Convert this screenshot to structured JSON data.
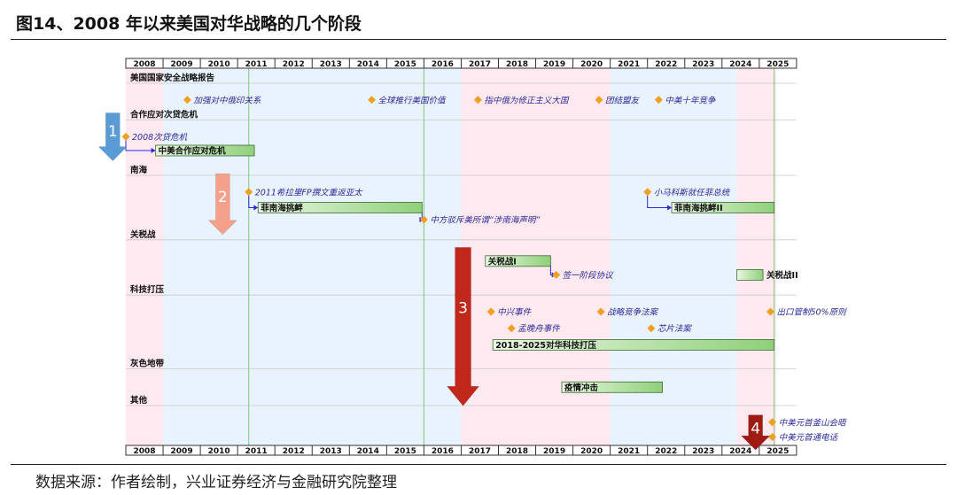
{
  "title": "图14、2008 年以来美国对华战略的几个阶段",
  "source": "数据来源：作者绘制，兴业证券经济与金融研究院整理",
  "colors": {
    "pink": "#fde9ef",
    "blue": "#e8f3fd",
    "bar_start": "#e9f7e2",
    "bar_end": "#8fd07a",
    "diamond": "#f0a020",
    "connector": "#2a2ae0",
    "event_text": "#2a2a9a",
    "arrow_blue": "#5b9bd5",
    "arrow_salmon": "#f4a08a",
    "arrow_red": "#c0281c",
    "arrow_darkred": "#9e1a12",
    "gridline": "#7dc77d"
  },
  "chart_data": {
    "type": "gantt",
    "years": [
      "2008",
      "2009",
      "2010",
      "2011",
      "2012",
      "2013",
      "2014",
      "2015",
      "2016",
      "2017",
      "2018",
      "2019",
      "2020",
      "2021",
      "2022",
      "2023",
      "2024",
      "2025"
    ],
    "periods": [
      {
        "from": 2008.0,
        "to": 2009.0,
        "shade": "pink"
      },
      {
        "from": 2009.0,
        "to": 2017.0,
        "shade": "blue"
      },
      {
        "from": 2017.0,
        "to": 2021.0,
        "shade": "pink"
      },
      {
        "from": 2021.0,
        "to": 2024.4,
        "shade": "blue"
      },
      {
        "from": 2024.4,
        "to": 2025.45,
        "shade": "pink"
      }
    ],
    "vlines": [
      2011.3,
      2016.0,
      2025.4
    ],
    "categories": [
      {
        "label": "美国国家安全战略报告",
        "row": 0.0
      },
      {
        "label": "合作应对次贷危机",
        "row": 2.0
      },
      {
        "label": "南海",
        "row": 5.0
      },
      {
        "label": "关税战",
        "row": 8.5
      },
      {
        "label": "科技打压",
        "row": 11.5
      },
      {
        "label": "灰色地带",
        "row": 15.5
      },
      {
        "label": "其他",
        "row": 17.5
      }
    ],
    "events": [
      {
        "label": "加强对中俄印关系",
        "date": 2009.65,
        "row": 1.0
      },
      {
        "label": "全球推行美国价值",
        "date": 2014.6,
        "row": 1.0
      },
      {
        "label": "指中俄为修正主义大国",
        "date": 2017.45,
        "row": 1.0
      },
      {
        "label": "团结盟友",
        "date": 2020.7,
        "row": 1.0
      },
      {
        "label": "中美十年竞争",
        "date": 2022.3,
        "row": 1.0
      },
      {
        "label": "2008次贷危机",
        "date": 2008.0,
        "row": 3.0
      },
      {
        "label": "2011希拉里FP撰文重返亚太",
        "date": 2011.3,
        "row": 6.0
      },
      {
        "label": "小马科斯就任菲总统",
        "date": 2022.0,
        "row": 6.0
      },
      {
        "label": "中方驳斥美所谓“涉南海声明”",
        "date": 2016.0,
        "row": 7.5
      },
      {
        "label": "签一阶段协议",
        "date": 2019.55,
        "row": 10.5
      },
      {
        "label": "中兴事件",
        "date": 2017.8,
        "row": 12.5
      },
      {
        "label": "战略竞争法案",
        "date": 2020.75,
        "row": 12.5
      },
      {
        "label": "出口管制50%原则",
        "date": 2025.3,
        "row": 12.5
      },
      {
        "label": "孟晚舟事件",
        "date": 2018.35,
        "row": 13.4
      },
      {
        "label": "芯片法案",
        "date": 2022.1,
        "row": 13.4
      },
      {
        "label": "中美元首釜山会晤",
        "date": 2025.35,
        "row": 18.5
      },
      {
        "label": "中美元首通电话",
        "date": 2025.35,
        "row": 19.3
      }
    ],
    "bars": [
      {
        "label": "中美合作应对危机",
        "start": 2008.8,
        "end": 2011.45,
        "row": 3.75
      },
      {
        "label": "菲南海挑衅",
        "start": 2011.55,
        "end": 2015.95,
        "row": 6.85
      },
      {
        "label": "菲南海挑衅II",
        "start": 2022.65,
        "end": 2025.4,
        "row": 6.85
      },
      {
        "label": "关税战I",
        "start": 2017.65,
        "end": 2019.4,
        "row": 9.75
      },
      {
        "label": "关税战II",
        "start": 2024.4,
        "end": 2025.1,
        "row": 10.5
      },
      {
        "label": "2018-2025对华科技打压",
        "start": 2017.85,
        "end": 2025.4,
        "row": 14.3
      },
      {
        "label": "疫情冲击",
        "start": 2019.7,
        "end": 2022.4,
        "row": 16.6
      }
    ],
    "connectors": [
      {
        "from_date": 2008.0,
        "from_row": 3.0,
        "to_date": 2008.8,
        "to_row": 3.75
      },
      {
        "from_date": 2011.3,
        "from_row": 6.0,
        "to_date": 2011.55,
        "to_row": 6.85
      },
      {
        "from_date": 2022.0,
        "from_row": 6.0,
        "to_date": 2022.65,
        "to_row": 6.85
      },
      {
        "from_date": 2015.95,
        "from_row": 6.85,
        "to_date": 2016.0,
        "to_row": 7.5
      },
      {
        "from_date": 2019.4,
        "from_row": 9.75,
        "to_date": 2019.55,
        "to_row": 10.5
      }
    ],
    "phase_arrows": [
      {
        "number": "1",
        "date": 2007.65,
        "row_top": 1.9,
        "row_bottom": 4.5,
        "color": "arrow_blue"
      },
      {
        "number": "2",
        "date": 2010.6,
        "row_top": 5.2,
        "row_bottom": 8.5,
        "color": "arrow_salmon"
      },
      {
        "number": "3",
        "date": 2017.05,
        "row_top": 9.2,
        "row_bottom": 17.8,
        "color": "arrow_red"
      },
      {
        "number": "4",
        "date": 2024.9,
        "row_top": 18.3,
        "row_bottom": 20.2,
        "color": "arrow_darkred"
      }
    ]
  }
}
